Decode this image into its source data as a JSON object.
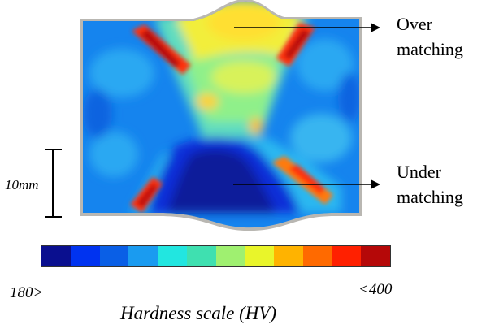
{
  "figure": {
    "callouts": {
      "over": {
        "line1": "Over",
        "line2": "matching"
      },
      "under": {
        "line1": "Under",
        "line2": "matching"
      }
    },
    "scale_bar_label": "10mm",
    "colorbar": {
      "min_label": "180>",
      "max_label": "<400",
      "title": "Hardness scale (HV)",
      "colors": [
        "#0a0f8f",
        "#0033f0",
        "#0a5fe6",
        "#1a9bf0",
        "#22e6e0",
        "#3fe0b0",
        "#9ff070",
        "#e9f52a",
        "#ffb300",
        "#ff6a00",
        "#ff2000",
        "#b50808"
      ]
    }
  }
}
